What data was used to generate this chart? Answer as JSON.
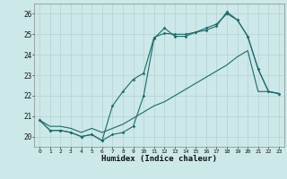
{
  "xlabel": "Humidex (Indice chaleur)",
  "bg_color": "#cce8e8",
  "grid_color": "#b8d4d4",
  "line_color": "#1a6b6b",
  "xlim": [
    -0.5,
    23.5
  ],
  "ylim": [
    19.5,
    26.5
  ],
  "yticks": [
    20,
    21,
    22,
    23,
    24,
    25,
    26
  ],
  "xticks": [
    0,
    1,
    2,
    3,
    4,
    5,
    6,
    7,
    8,
    9,
    10,
    11,
    12,
    13,
    14,
    15,
    16,
    17,
    18,
    19,
    20,
    21,
    22,
    23
  ],
  "line1_x": [
    0,
    1,
    2,
    3,
    4,
    5,
    6,
    7,
    8,
    9,
    10,
    11,
    12,
    13,
    14,
    15,
    16,
    17,
    18,
    19,
    20,
    21,
    22,
    23
  ],
  "line1_y": [
    20.8,
    20.3,
    20.3,
    20.2,
    20.0,
    20.1,
    19.8,
    20.1,
    20.2,
    20.5,
    22.0,
    24.8,
    25.3,
    24.9,
    24.9,
    25.1,
    25.2,
    25.4,
    26.1,
    25.7,
    24.9,
    23.3,
    22.2,
    22.1
  ],
  "line2_x": [
    0,
    1,
    2,
    3,
    4,
    5,
    6,
    7,
    8,
    9,
    10,
    11,
    12,
    13,
    14,
    15,
    16,
    17,
    18,
    19,
    20,
    21,
    22,
    23
  ],
  "line2_y": [
    20.8,
    20.3,
    20.3,
    20.2,
    20.0,
    20.1,
    19.8,
    21.5,
    22.2,
    22.8,
    23.1,
    24.85,
    25.05,
    25.0,
    25.0,
    25.1,
    25.3,
    25.5,
    26.0,
    25.7,
    24.9,
    23.3,
    22.2,
    22.1
  ],
  "line3_x": [
    0,
    1,
    2,
    3,
    4,
    5,
    6,
    7,
    8,
    9,
    10,
    11,
    12,
    13,
    14,
    15,
    16,
    17,
    18,
    19,
    20,
    21,
    22,
    23
  ],
  "line3_y": [
    20.8,
    20.5,
    20.5,
    20.4,
    20.2,
    20.4,
    20.2,
    20.4,
    20.6,
    20.9,
    21.2,
    21.5,
    21.7,
    22.0,
    22.3,
    22.6,
    22.9,
    23.2,
    23.5,
    23.9,
    24.2,
    22.2,
    22.2,
    22.1
  ]
}
